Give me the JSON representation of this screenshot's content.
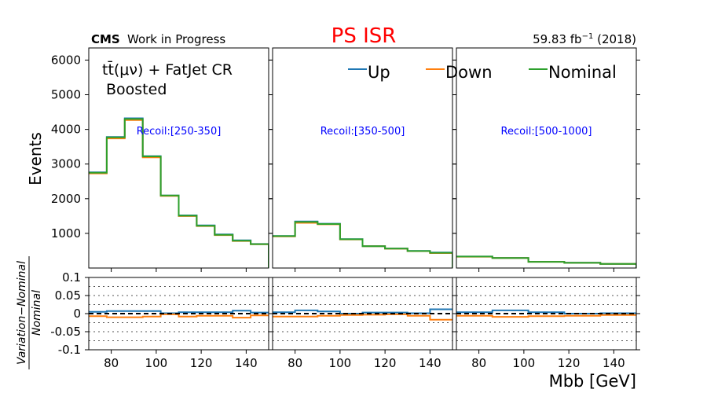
{
  "header": {
    "cms": "CMS",
    "work": "Work in Progress",
    "title": "PS ISR",
    "title_color": "#ff0000",
    "lumi": "59.83 fb",
    "lumi_sup": "−1",
    "year": "(2018)"
  },
  "text": {
    "process_line1": "tt̄(μν) + FatJet CR",
    "process_line2": "Boosted"
  },
  "chart_data": {
    "type": "step-histogram",
    "xlabel": "Mbb [GeV]",
    "ylabel": "Events",
    "ratio_ylabel": "(Variation − Nominal) / Nominal",
    "ratio_ylabel_numerator": "Variation−Nominal",
    "ratio_ylabel_denominator": "Nominal",
    "xlim": [
      70,
      150
    ],
    "ylim": [
      0,
      6350
    ],
    "ratio_ylim": [
      -0.1,
      0.1
    ],
    "x_ticks": [
      80,
      100,
      120,
      140
    ],
    "x_tick_labels": [
      "80",
      "100",
      "120",
      "140"
    ],
    "y_ticks": [
      1000,
      2000,
      3000,
      4000,
      5000,
      6000
    ],
    "y_tick_labels": [
      "1000",
      "2000",
      "3000",
      "4000",
      "5000",
      "6000"
    ],
    "ratio_ticks": [
      -0.1,
      -0.05,
      0,
      0.05,
      0.1
    ],
    "ratio_tick_labels": [
      "-0.1",
      "-0.05",
      "0",
      "0.05",
      "0.1"
    ],
    "ratio_dotted_lines": [
      -0.1,
      -0.075,
      -0.05,
      -0.025,
      0.025,
      0.05,
      0.075,
      0.1
    ],
    "legend": {
      "placement": "top",
      "entries": [
        {
          "label": "Up",
          "color": "#1f77b4"
        },
        {
          "label": "Down",
          "color": "#ff7f0e"
        },
        {
          "label": "Nominal",
          "color": "#2ca02c"
        }
      ]
    },
    "colors": {
      "up": "#1f77b4",
      "down": "#ff7f0e",
      "nominal": "#2ca02c"
    },
    "panels": [
      {
        "label": "Recoil:[250-350]",
        "edges": [
          70,
          78,
          86,
          94,
          102,
          110,
          118,
          126,
          134,
          142,
          150
        ],
        "nominal": [
          2750,
          3770,
          4300,
          3220,
          2090,
          1510,
          1220,
          960,
          790,
          690
        ],
        "up": [
          2760,
          3780,
          4320,
          3230,
          2090,
          1520,
          1230,
          970,
          800,
          695
        ],
        "down": [
          2730,
          3740,
          4270,
          3190,
          2080,
          1500,
          1210,
          950,
          780,
          685
        ],
        "ratio_up": [
          0.005,
          0.007,
          0.007,
          0.007,
          0.001,
          0.004,
          0.004,
          0.004,
          0.008,
          0.003
        ],
        "ratio_down": [
          -0.007,
          -0.01,
          -0.01,
          -0.008,
          -0.002,
          -0.008,
          -0.006,
          -0.006,
          -0.011,
          -0.005
        ]
      },
      {
        "label": "Recoil:[350-500]",
        "edges": [
          70,
          80,
          90,
          100,
          110,
          120,
          130,
          140,
          150
        ],
        "nominal": [
          920,
          1330,
          1270,
          830,
          630,
          560,
          490,
          440
        ],
        "up": [
          925,
          1345,
          1280,
          835,
          632,
          563,
          492,
          447
        ],
        "down": [
          915,
          1305,
          1260,
          825,
          628,
          558,
          487,
          432
        ],
        "ratio_up": [
          0.004,
          0.009,
          0.006,
          0.0,
          0.003,
          0.003,
          0.001,
          0.012
        ],
        "ratio_down": [
          -0.008,
          -0.008,
          -0.006,
          -0.004,
          -0.003,
          -0.002,
          -0.006,
          -0.017
        ]
      },
      {
        "label": "Recoil:[500-1000]",
        "edges": [
          70,
          86,
          102,
          118,
          134,
          150
        ],
        "nominal": [
          330,
          290,
          180,
          150,
          120
        ],
        "up": [
          332,
          293,
          181,
          151,
          121
        ],
        "down": [
          327,
          287,
          179,
          149,
          119
        ],
        "ratio_up": [
          0.004,
          0.009,
          0.004,
          0.0,
          0.001
        ],
        "ratio_down": [
          -0.006,
          -0.009,
          -0.007,
          -0.006,
          -0.004
        ]
      }
    ]
  }
}
